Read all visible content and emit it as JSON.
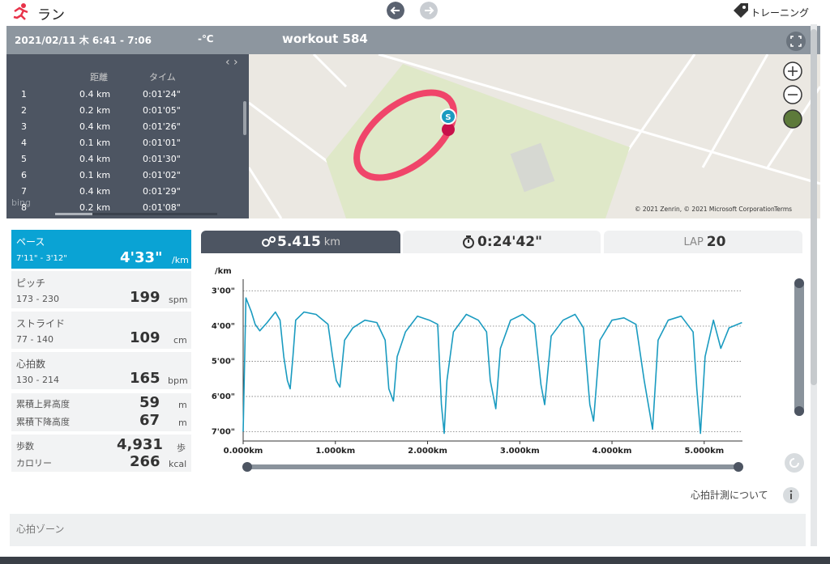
{
  "header": {
    "title": "ラン",
    "training": "トレーニング"
  },
  "workout": {
    "date": "2021/02/11 木 6:41 - 7:06",
    "temperature": "-℃",
    "name": "workout 584"
  },
  "laps": {
    "columns": [
      "距離",
      "タイム"
    ],
    "rows": [
      [
        "1",
        "0.4 km",
        "0:01'24\""
      ],
      [
        "2",
        "0.2 km",
        "0:01'05\""
      ],
      [
        "3",
        "0.4 km",
        "0:01'26\""
      ],
      [
        "4",
        "0.1 km",
        "0:01'01\""
      ],
      [
        "5",
        "0.4 km",
        "0:01'30\""
      ],
      [
        "6",
        "0.1 km",
        "0:01'02\""
      ],
      [
        "7",
        "0.4 km",
        "0:01'29\""
      ],
      [
        "8",
        "0.2 km",
        "0:01'08\""
      ]
    ]
  },
  "map": {
    "logo": "bing",
    "start_marker": "S",
    "attribution": "© 2021 Zenrin, © 2021 Microsoft Corporation",
    "terms": "Terms"
  },
  "metrics": [
    {
      "label": "ペース",
      "range": "7'11\" - 3'12\"",
      "value": "4'33\"",
      "unit": "/km"
    },
    {
      "label": "ピッチ",
      "range": "173 - 230",
      "value": "199",
      "unit": "spm"
    },
    {
      "label": "ストライド",
      "range": "77 - 140",
      "value": "109",
      "unit": "cm"
    },
    {
      "label": "心拍数",
      "range": "130 - 214",
      "value": "165",
      "unit": "bpm"
    },
    {
      "rows": [
        {
          "label": "累積上昇高度",
          "value": "59",
          "unit": "m"
        },
        {
          "label": "累積下降高度",
          "value": "67",
          "unit": "m"
        }
      ]
    },
    {
      "rows": [
        {
          "label": "歩数",
          "value": "4,931",
          "unit": "歩"
        },
        {
          "label": "カロリー",
          "value": "266",
          "unit": "kcal"
        }
      ]
    }
  ],
  "tabs": {
    "distance": "5.415",
    "distance_unit": "km",
    "time": "0:24'42\"",
    "lap_label": "LAP",
    "laps": "20"
  },
  "chart_data": {
    "type": "line",
    "y_label": "/km",
    "color": "#1a9bc0",
    "grid": true,
    "y_inverted": true,
    "xlim": [
      0,
      5.415
    ],
    "ylim": [
      160,
      436
    ],
    "xticks": [
      {
        "value": 0,
        "label": "0.000km"
      },
      {
        "value": 1,
        "label": "1.000km"
      },
      {
        "value": 2,
        "label": "2.000km"
      },
      {
        "value": 3,
        "label": "3.000km"
      },
      {
        "value": 4,
        "label": "4.000km"
      },
      {
        "value": 5,
        "label": "5.000km"
      }
    ],
    "yticks": [
      {
        "value": 180,
        "label": "3'00\""
      },
      {
        "value": 240,
        "label": "4'00\""
      },
      {
        "value": 300,
        "label": "5'00\""
      },
      {
        "value": 360,
        "label": "6'00\""
      },
      {
        "value": 420,
        "label": "7'00\""
      }
    ],
    "x": [
      0,
      0.03,
      0.09,
      0.13,
      0.18,
      0.26,
      0.35,
      0.4,
      0.44,
      0.48,
      0.51,
      0.54,
      0.57,
      0.66,
      0.79,
      0.92,
      0.97,
      1.01,
      1.05,
      1.1,
      1.19,
      1.32,
      1.45,
      1.54,
      1.58,
      1.63,
      1.67,
      1.76,
      1.89,
      2.02,
      2.11,
      2.15,
      2.18,
      2.21,
      2.28,
      2.42,
      2.55,
      2.64,
      2.68,
      2.74,
      2.79,
      2.9,
      3.03,
      3.16,
      3.23,
      3.27,
      3.34,
      3.47,
      3.6,
      3.69,
      3.76,
      3.8,
      3.87,
      4.0,
      4.13,
      4.26,
      4.35,
      4.44,
      4.5,
      4.61,
      4.75,
      4.88,
      4.92,
      4.96,
      5.01,
      5.1,
      5.18,
      5.27,
      5.41
    ],
    "values": [
      420,
      192,
      216,
      237,
      248,
      234,
      216,
      230,
      292,
      333,
      347,
      292,
      230,
      216,
      220,
      237,
      292,
      333,
      344,
      264,
      243,
      230,
      234,
      264,
      347,
      368,
      292,
      250,
      223,
      230,
      237,
      374,
      423,
      333,
      250,
      220,
      230,
      250,
      333,
      381,
      278,
      230,
      220,
      237,
      340,
      374,
      257,
      230,
      220,
      243,
      374,
      402,
      264,
      230,
      226,
      237,
      333,
      416,
      264,
      230,
      223,
      250,
      347,
      423,
      292,
      230,
      278,
      243,
      234
    ]
  },
  "footer": {
    "heart_rate_note": "心拍計測について",
    "heart_zone": "心拍ゾーン"
  }
}
